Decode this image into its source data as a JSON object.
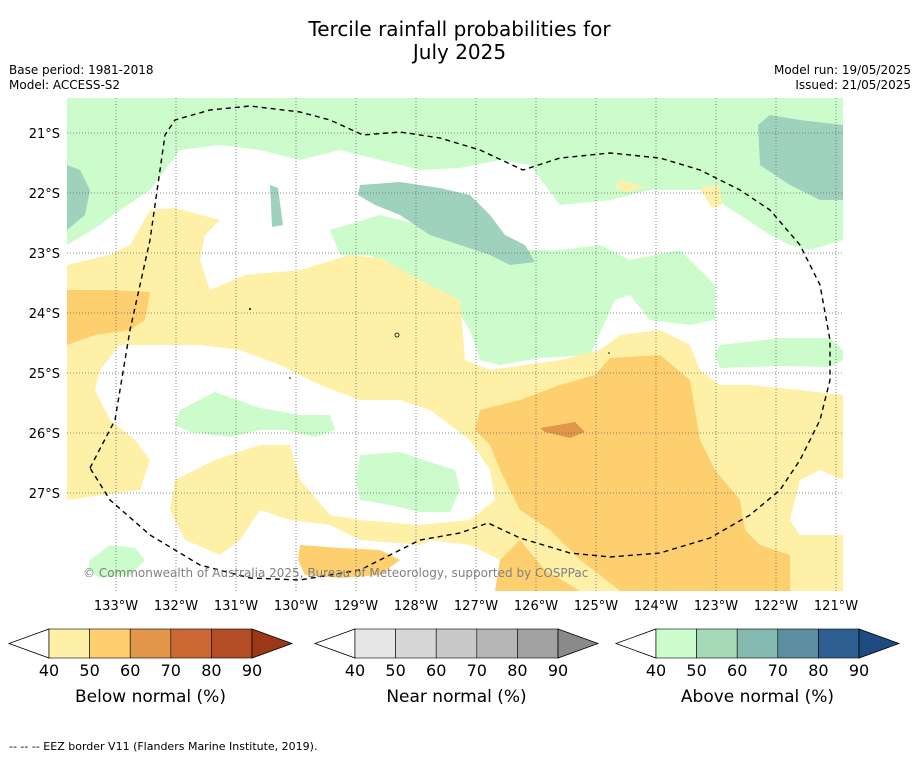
{
  "title_line1": "Tercile rainfall probabilities for",
  "title_line2": "July 2025",
  "base_period": "Base period: 1981-2018",
  "model": "Model: ACCESS-S2",
  "model_run": "Model run: 19/05/2025",
  "issued": "Issued: 21/05/2025",
  "copyright": "© Commonwealth of Australia 2025, Bureau of Meteorology, supported by COSPPac",
  "footer": "--  --  -- EEZ border V11 (Flanders Marine Institute, 2019).",
  "map": {
    "lon_labels": [
      "133°W",
      "132°W",
      "131°W",
      "130°W",
      "129°W",
      "128°W",
      "127°W",
      "126°W",
      "125°W",
      "124°W",
      "123°W",
      "122°W",
      "121°W"
    ],
    "lat_labels": [
      "21°S",
      "22°S",
      "23°S",
      "24°S",
      "25°S",
      "26°S",
      "27°S"
    ]
  },
  "colorbars": [
    {
      "label": "Below normal (%)",
      "ticks": [
        "40",
        "50",
        "60",
        "70",
        "80",
        "90"
      ],
      "colors": [
        "#fff0a8",
        "#fecf6e",
        "#e2964a",
        "#cc6834",
        "#b34d25",
        "#9c3817"
      ]
    },
    {
      "label": "Near normal (%)",
      "ticks": [
        "40",
        "50",
        "60",
        "70",
        "80",
        "90"
      ],
      "colors": [
        "#e6e6e6",
        "#d6d6d6",
        "#c8c8c8",
        "#b5b5b5",
        "#a2a2a2",
        "#8a8a8a"
      ]
    },
    {
      "label": "Above normal (%)",
      "ticks": [
        "40",
        "50",
        "60",
        "70",
        "80",
        "90"
      ],
      "colors": [
        "#ccfccb",
        "#a5d9b8",
        "#83b9ae",
        "#5a8ea0",
        "#2f5f92",
        "#1e4c80"
      ]
    }
  ],
  "legend_colors": {
    "below_40": "#fff0a8",
    "below_50": "#fecf6e",
    "below_60": "#e2964a",
    "above_40": "#ccfccb",
    "above_60": "#9fd2bd"
  }
}
